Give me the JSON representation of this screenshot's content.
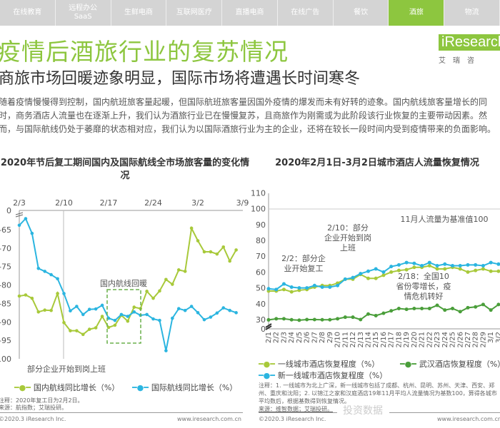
{
  "nav": {
    "items": [
      "在线教育",
      "远程办公\nSaaS",
      "生鲜电商",
      "互联网医疗",
      "直播电商",
      "在线广告",
      "餐饮",
      "酒旅",
      "物流"
    ],
    "active": "酒旅"
  },
  "header": {
    "title": "疫情后酒旅行业的复苏情况",
    "subtitle": "商旅市场回暖迹象明显，国际市场将遭遇长时间寒冬",
    "logo": "iResearch",
    "logo_sub": "艾瑞咨"
  },
  "paragraph": "随着疫情慢慢得到控制，国内航班旅客量起暖，但国际航班旅客量因国外疫情的爆发而未有好转的迹象。国内航线旅客量增长的同时，商务酒店人流量也在逐渐上升，我们认为酒旅行业已在慢慢复苏，且商旅作为刚需或为此阶段该行业恢复的主要带动因素。然而，与国际航线仍处于萎靡的状态相对应，我们认为以国际酒旅行业为主的企业，还将在较长一段时间内受到疫情带来的负面影响。",
  "colors": {
    "accent": "#8dc63f",
    "light_green": "#a8c93a",
    "blue": "#2bb5e0",
    "dark_green": "#4a9e3a"
  },
  "chart_data": [
    {
      "type": "line",
      "title": "2020年节后复工期间国内及国际航线全市场旅客量的变化情况",
      "x": [
        "2/3",
        "2/4",
        "2/5",
        "2/6",
        "2/7",
        "2/8",
        "2/9",
        "2/10",
        "2/11",
        "2/12",
        "2/13",
        "2/14",
        "2/15",
        "2/16",
        "2/17",
        "2/18",
        "2/19",
        "2/20",
        "2/21",
        "2/22",
        "2/23",
        "2/24",
        "2/25",
        "2/26",
        "2/27",
        "2/28",
        "2/29",
        "3/1",
        "3/2",
        "3/3",
        "3/4",
        "3/5",
        "3/6",
        "3/7",
        "3/8"
      ],
      "xticks": [
        "2/3",
        "2/10",
        "2/17",
        "2/24",
        "3/2",
        "3/9"
      ],
      "yticks": [
        "0",
        "-65",
        "-70",
        "-75",
        "-80",
        "-85",
        "-90",
        "-95",
        "-100"
      ],
      "ylim": [
        -100,
        -60
      ],
      "axis_break": true,
      "x_axis_position": "top",
      "series": [
        {
          "name": "国内航线同比增长（%）",
          "color": "#a8c93a",
          "values": [
            -83,
            -82.7,
            -83.6,
            -87.3,
            -86.8,
            -86.9,
            -82.3,
            -90.2,
            -92.4,
            -92.4,
            -93.4,
            -92,
            -91.6,
            -88.5,
            -91.5,
            -90.9,
            -88.2,
            -89.8,
            -86,
            -86.4,
            -81.7,
            -83.6,
            -81.6,
            -78.5,
            -79.8,
            -75.9,
            -76.3,
            -64.6,
            -68,
            -71,
            -71,
            -71.6,
            -69.7,
            -73.5,
            -70.5
          ]
        },
        {
          "name": "国际航线同比增长（%）",
          "color": "#2bb5e0",
          "values": [
            -63.8,
            -62,
            -66,
            -75.5,
            -76.3,
            -77.2,
            -78.3,
            -82.3,
            -87,
            -85.8,
            -88,
            -86.6,
            -86.5,
            -85.5,
            -89,
            -89.6,
            -88,
            -88.5,
            -87.3,
            -88.2,
            -88,
            -89.2,
            -89.6,
            -97.8,
            -89,
            -86.4,
            -86.9,
            -85.8,
            -87.5,
            -89.4,
            -88.7,
            -87.6,
            -86.2,
            -86.9,
            -87.5
          ]
        }
      ],
      "annotations": [
        "国内航线回暖",
        "部分企业开始到岗上班"
      ],
      "note": "注释：2020年复工日为2月2日。",
      "source": "来源：航指数；艾瑞投研。"
    },
    {
      "type": "line",
      "title": "2020年2月1日-3月2日城市酒店人流量恢复情况",
      "x": [
        "2/1",
        "2/2",
        "2/3",
        "2/4",
        "2/5",
        "2/6",
        "2/7",
        "2/8",
        "2/9",
        "2/10",
        "2/11",
        "2/12",
        "2/13",
        "2/14",
        "2/15",
        "2/16",
        "2/17",
        "2/18",
        "2/19",
        "2/20",
        "2/21",
        "2/22",
        "2/23",
        "2/24",
        "2/25",
        "2/26",
        "2/27",
        "2/28",
        "2/29",
        "3/1",
        "3/2"
      ],
      "yticks": [
        "0",
        "30",
        "40",
        "50",
        "60",
        "70",
        "80",
        "90",
        "100",
        "110"
      ],
      "ylim": [
        0,
        110
      ],
      "axis_break": true,
      "grid": "100 reference line",
      "series": [
        {
          "name": "一线城市酒店恢复程度（%）",
          "color": "#a8c93a",
          "values": [
            48,
            48,
            49,
            47.5,
            48.5,
            49,
            50.5,
            51.5,
            51.5,
            53,
            55.5,
            55.5,
            58.5,
            56,
            56,
            58,
            60,
            61,
            61.5,
            63,
            63,
            64,
            62,
            62,
            63,
            62,
            60,
            61,
            62,
            60.5,
            60.5
          ]
        },
        {
          "name": "武汉酒店恢复程度（%）",
          "color": "#4a9e3a",
          "values": [
            29,
            30.5,
            30.5,
            29.5,
            28,
            30,
            30,
            29.5,
            29.5,
            30.5,
            31.5,
            31.5,
            30,
            33.5,
            32.5,
            34,
            35.5,
            37,
            36.5,
            37,
            37,
            37,
            39,
            36,
            37,
            35,
            37.5,
            38,
            39.5,
            36,
            39.5
          ]
        },
        {
          "name": "新一线城市酒店恢复程度（%）",
          "color": "#2bb5e0",
          "values": [
            49.5,
            49,
            52.5,
            50.5,
            50,
            50,
            51.5,
            50.5,
            50.5,
            51.5,
            55.5,
            56.5,
            59,
            60.5,
            62,
            60,
            63.5,
            64.5,
            66,
            65.5,
            64,
            66,
            64,
            65,
            64,
            64,
            64.5,
            64.5,
            64,
            66,
            65
          ]
        }
      ],
      "annotations": [
        "11月人流量为基准值100",
        "2/10：部分\n企业开始到岗\n上班",
        "2/2：部分企\n业开始复工",
        "2/18：全国10\n省份零增长，疫\n情危机转好"
      ],
      "note": "注释：1. 一线城市为北上广深，新一线城市包括了成都、杭州、昆明、苏州、天津、西安、郑州、重庆和沈阳；2. 以锦江之家和汉庭酒店19年11月平均人流量情况为基数100，算得各城市平均数后，根据基数得到恢复情况。",
      "source": "来源：维智数据；艾瑞投研。"
    }
  ],
  "footer": {
    "copyright": "©2020.3 iResearch Inc.",
    "url": "www.iresearch.com.cn",
    "watermark": "投资数据"
  }
}
